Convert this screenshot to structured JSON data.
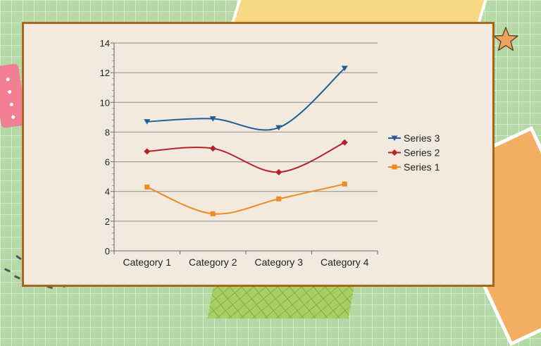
{
  "colors": {
    "series_3": "#1f5f93",
    "series_2": "#b8202c",
    "series_1": "#f08a1c",
    "panel_border": "#a9661a",
    "panel_fill": "#f2eade"
  },
  "chart_data": {
    "type": "line",
    "smooth": true,
    "categories": [
      "Category 1",
      "Category 2",
      "Category 3",
      "Category 4"
    ],
    "series": [
      {
        "name": "Series 1",
        "values": [
          4.3,
          2.5,
          3.5,
          4.5
        ],
        "marker": "square"
      },
      {
        "name": "Series 2",
        "values": [
          6.7,
          6.9,
          5.3,
          7.3
        ],
        "marker": "diamond"
      },
      {
        "name": "Series 3",
        "values": [
          8.7,
          8.9,
          8.3,
          12.3
        ],
        "marker": "triangle-down"
      }
    ],
    "legend_order": [
      "Series 3",
      "Series 2",
      "Series 1"
    ],
    "ylim": [
      0,
      14
    ],
    "yticks": [
      0,
      2,
      4,
      6,
      8,
      10,
      12,
      14
    ],
    "grid": true,
    "legend_position": "right"
  }
}
